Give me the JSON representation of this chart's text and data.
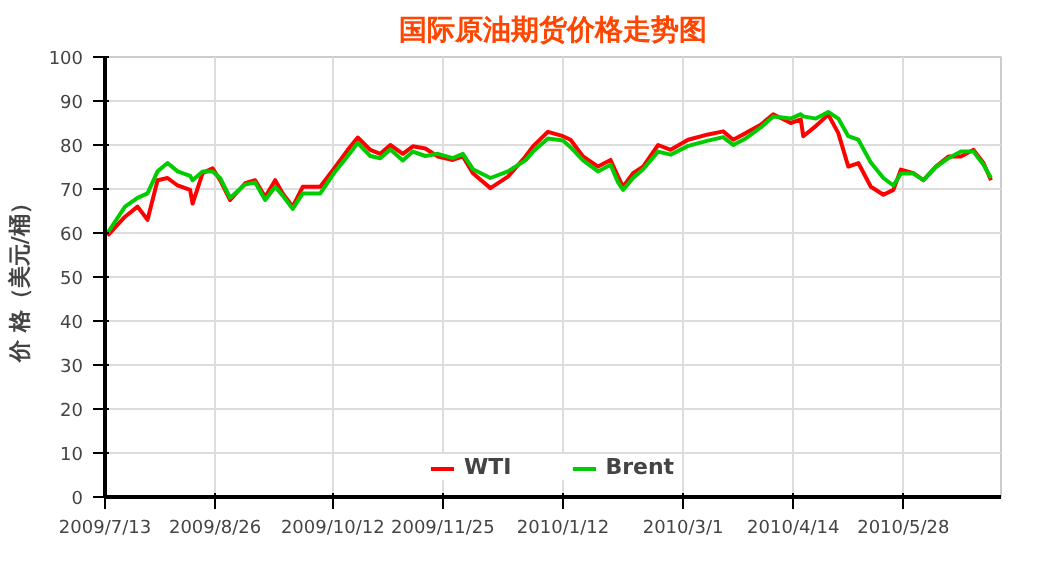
{
  "chart_data": {
    "type": "line",
    "title": "国际原油期货价格走势图",
    "ylabel": "价 格（美元/桶）",
    "x": [
      "2009-07-14",
      "2009-07-21",
      "2009-07-26",
      "2009-07-30",
      "2009-08-03",
      "2009-08-07",
      "2009-08-11",
      "2009-08-16",
      "2009-08-17",
      "2009-08-21",
      "2009-08-25",
      "2009-08-28",
      "2009-09-01",
      "2009-09-07",
      "2009-09-11",
      "2009-09-15",
      "2009-09-19",
      "2009-09-22",
      "2009-09-26",
      "2009-09-30",
      "2009-10-07",
      "2009-10-13",
      "2009-10-18",
      "2009-10-22",
      "2009-10-27",
      "2009-10-31",
      "2009-11-04",
      "2009-11-09",
      "2009-11-13",
      "2009-11-18",
      "2009-11-23",
      "2009-11-29",
      "2009-12-03",
      "2009-12-07",
      "2009-12-14",
      "2009-12-21",
      "2009-12-28",
      "2009-12-31",
      "2010-01-06",
      "2010-01-12",
      "2010-01-15",
      "2010-01-20",
      "2010-01-26",
      "2010-01-31",
      "2010-02-03",
      "2010-02-05",
      "2010-02-09",
      "2010-02-13",
      "2010-02-19",
      "2010-02-24",
      "2010-03-03",
      "2010-03-11",
      "2010-03-17",
      "2010-03-21",
      "2010-03-26",
      "2010-04-01",
      "2010-04-06",
      "2010-04-13",
      "2010-04-17",
      "2010-04-18",
      "2010-04-23",
      "2010-04-28",
      "2010-05-02",
      "2010-05-06",
      "2010-05-10",
      "2010-05-15",
      "2010-05-20",
      "2010-05-24",
      "2010-05-27",
      "2010-06-01",
      "2010-06-05",
      "2010-06-10",
      "2010-06-15",
      "2010-06-20",
      "2010-06-25",
      "2010-06-29",
      "2010-07-02"
    ],
    "series": [
      {
        "name": "WTI",
        "color": "#ff0000",
        "values": [
          59.4,
          63.7,
          66,
          63,
          72,
          72.5,
          70.8,
          69.8,
          66.7,
          73.6,
          74.7,
          72,
          67.5,
          71.3,
          72,
          68.2,
          72,
          69,
          66,
          70.5,
          70.5,
          75,
          78.9,
          81.7,
          78.9,
          78,
          80,
          78,
          79.7,
          79.2,
          77.4,
          76.6,
          77.4,
          73.6,
          70.2,
          72.8,
          77.4,
          79.7,
          83,
          82,
          81.2,
          77.4,
          75.1,
          76.6,
          72.8,
          70.5,
          73.6,
          75.1,
          80,
          78.9,
          81.2,
          82.4,
          83.1,
          81.2,
          82.7,
          84.6,
          87,
          85,
          85.8,
          82,
          84.3,
          86.9,
          82.7,
          75.1,
          75.9,
          70.5,
          68.7,
          69.8,
          74.4,
          73.6,
          72,
          75.1,
          77.4,
          77.4,
          78.9,
          75.9,
          72
        ]
      },
      {
        "name": "Brent",
        "color": "#00cc00",
        "values": [
          60,
          66,
          68,
          69,
          74,
          75.9,
          74,
          73,
          72,
          74,
          74,
          72.5,
          68,
          71,
          71.5,
          67.5,
          70.5,
          68.5,
          65.5,
          69,
          69,
          74,
          77.5,
          80.5,
          77.5,
          77,
          79,
          76.5,
          78.5,
          77.5,
          78,
          77,
          78,
          74.5,
          72.5,
          74,
          76.5,
          78.5,
          81.5,
          81,
          79.5,
          76.5,
          74,
          75.5,
          71.5,
          69.8,
          72.5,
          74.5,
          78.5,
          77.8,
          79.8,
          81,
          81.8,
          80,
          81.5,
          84,
          86.5,
          86,
          87,
          86.5,
          86,
          87.5,
          86,
          82,
          81.2,
          76,
          72.5,
          70.8,
          73.5,
          73.5,
          72,
          75,
          77,
          78.5,
          78.5,
          75.5,
          72.5
        ]
      }
    ],
    "xlim": [
      "2009-07-13",
      "2010-07-06"
    ],
    "xticks": [
      {
        "value": "2009-07-13",
        "label": "2009/7/13"
      },
      {
        "value": "2009-08-26",
        "label": "2009/8/26"
      },
      {
        "value": "2009-10-12",
        "label": "2009/10/12"
      },
      {
        "value": "2009-11-25",
        "label": "2009/11/25"
      },
      {
        "value": "2010-01-12",
        "label": "2010/1/12"
      },
      {
        "value": "2010-03-01",
        "label": "2010/3/1"
      },
      {
        "value": "2010-04-14",
        "label": "2010/4/14"
      },
      {
        "value": "2010-05-28",
        "label": "2010/5/28"
      }
    ],
    "ylim": [
      0,
      100
    ],
    "yticks": [
      0,
      10,
      20,
      30,
      40,
      50,
      60,
      70,
      80,
      90,
      100
    ],
    "grid": true,
    "legend": "bottom",
    "marker": "none",
    "line_style": "solid"
  }
}
